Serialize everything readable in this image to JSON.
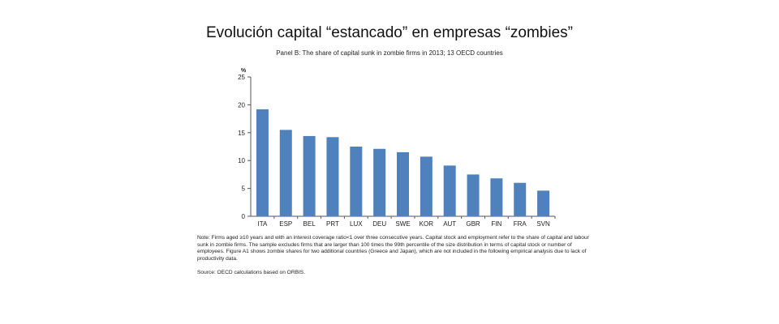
{
  "header": {
    "title": "Evolución capital “estancado” en empresas “zombies”"
  },
  "chart_data": {
    "type": "bar",
    "title": "Panel B: The share of capital sunk in zombie firms in 2013; 13 OECD countries",
    "ylabel": "%",
    "xlabel": "",
    "ylim": [
      0,
      25
    ],
    "yticks": [
      0,
      5,
      10,
      15,
      20,
      25
    ],
    "grid": false,
    "legend": "none",
    "bar_color": "#4f81bd",
    "categories": [
      "ITA",
      "ESP",
      "BEL",
      "PRT",
      "LUX",
      "DEU",
      "SWE",
      "KOR",
      "AUT",
      "GBR",
      "FIN",
      "FRA",
      "SVN"
    ],
    "values": [
      19.2,
      15.5,
      14.4,
      14.2,
      12.5,
      12.1,
      11.5,
      10.7,
      9.1,
      7.5,
      6.8,
      6.0,
      4.6
    ]
  },
  "footer": {
    "note": "Note: Firms aged ≥10 years and with an interest coverage ratio<1 over three consecutive years. Capital stock and employment refer to the share of capital and labour sunk in zombie firms. The sample excludes firms that are larger than 100 times the 99th percentile of the size distribution in terms of capital stock or number of employees. Figure A1 shows zombie shares for two additional countries (Greece and Japan), which are not included in the following empirical analysis due to lack of productivity data.",
    "source": "Source: OECD calculations based on ORBIS."
  }
}
